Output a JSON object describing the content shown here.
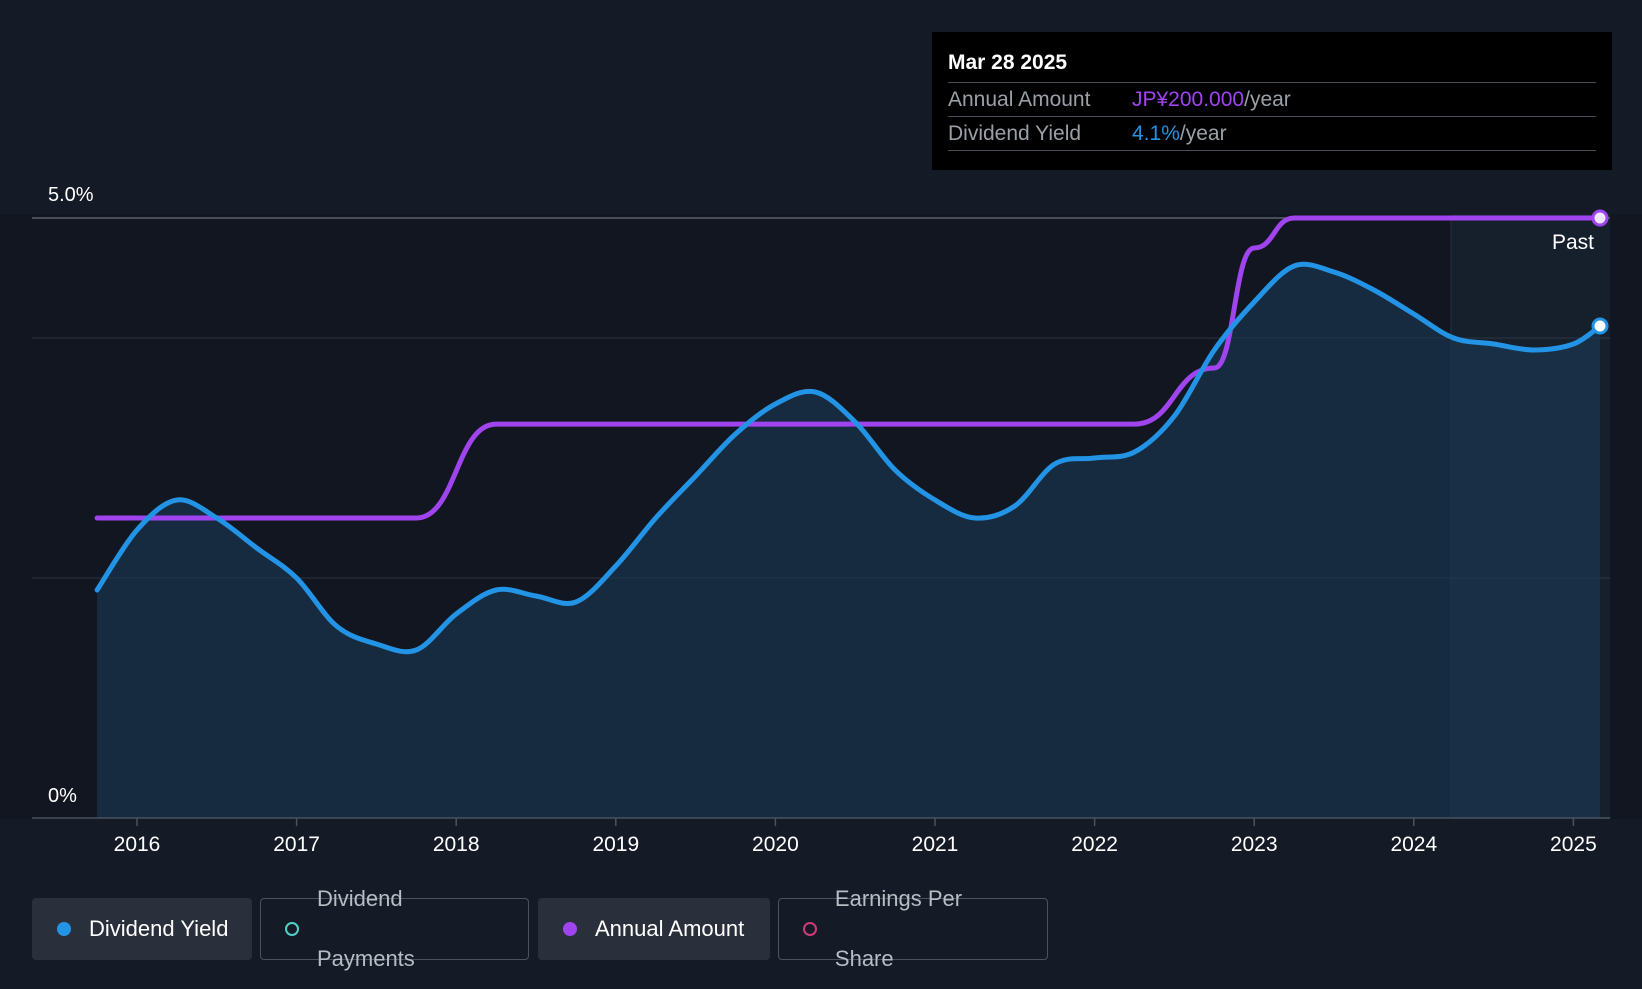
{
  "tooltip": {
    "date": "Mar 28 2025",
    "annual_label": "Annual Amount",
    "annual_value": "JP¥200.000",
    "annual_unit": "/year",
    "yield_label": "Dividend Yield",
    "yield_value": "4.1%",
    "yield_unit": "/year"
  },
  "past_label": "Past",
  "legend": [
    {
      "label": "Dividend Yield",
      "color": "#2394e5",
      "active": true,
      "filled": true
    },
    {
      "label": "Dividend Payments",
      "color": "#4fd1c5",
      "active": false,
      "filled": false
    },
    {
      "label": "Annual Amount",
      "color": "#a044f0",
      "active": true,
      "filled": true
    },
    {
      "label": "Earnings Per Share",
      "color": "#d03a7a",
      "active": false,
      "filled": false
    }
  ],
  "colors": {
    "background": "#151b26",
    "plot_background": "#111620",
    "yield_line": "#2394e5",
    "annual_line": "#a044f0"
  },
  "chart_data": {
    "type": "line",
    "ylim": [
      0,
      5.0
    ],
    "ytick_labels": [
      "5.0%",
      "0%"
    ],
    "xtick_labels": [
      "2016",
      "2017",
      "2018",
      "2019",
      "2020",
      "2021",
      "2022",
      "2023",
      "2024",
      "2025"
    ],
    "x_range": [
      "2015-10",
      "2025-03"
    ],
    "grid": true,
    "past_from": "2024-04",
    "series": [
      {
        "name": "Dividend Yield",
        "unit": "%",
        "x": [
          "2015-10",
          "2016-01",
          "2016-04",
          "2016-07",
          "2016-10",
          "2017-01",
          "2017-04",
          "2017-07",
          "2017-10",
          "2018-01",
          "2018-04",
          "2018-07",
          "2018-10",
          "2019-01",
          "2019-04",
          "2019-07",
          "2019-10",
          "2020-01",
          "2020-04",
          "2020-07",
          "2020-10",
          "2021-01",
          "2021-04",
          "2021-07",
          "2021-10",
          "2022-01",
          "2022-04",
          "2022-07",
          "2022-10",
          "2023-01",
          "2023-04",
          "2023-07",
          "2023-10",
          "2024-01",
          "2024-04",
          "2024-07",
          "2024-10",
          "2025-01",
          "2025-03"
        ],
        "values": [
          1.9,
          2.4,
          2.65,
          2.5,
          2.25,
          2.0,
          1.6,
          1.45,
          1.4,
          1.7,
          1.9,
          1.85,
          1.8,
          2.1,
          2.5,
          2.85,
          3.2,
          3.45,
          3.55,
          3.3,
          2.9,
          2.65,
          2.5,
          2.6,
          2.95,
          3.0,
          3.05,
          3.35,
          3.9,
          4.3,
          4.6,
          4.55,
          4.4,
          4.2,
          4.0,
          3.95,
          3.9,
          3.95,
          4.1
        ]
      },
      {
        "name": "Annual Amount",
        "unit": "JP¥",
        "x": [
          "2015-10",
          "2017-10",
          "2018-04",
          "2022-04",
          "2022-10",
          "2023-01",
          "2023-04",
          "2025-03"
        ],
        "values": [
          100,
          100,
          131.3,
          131.3,
          150,
          190,
          200,
          200
        ]
      }
    ]
  }
}
